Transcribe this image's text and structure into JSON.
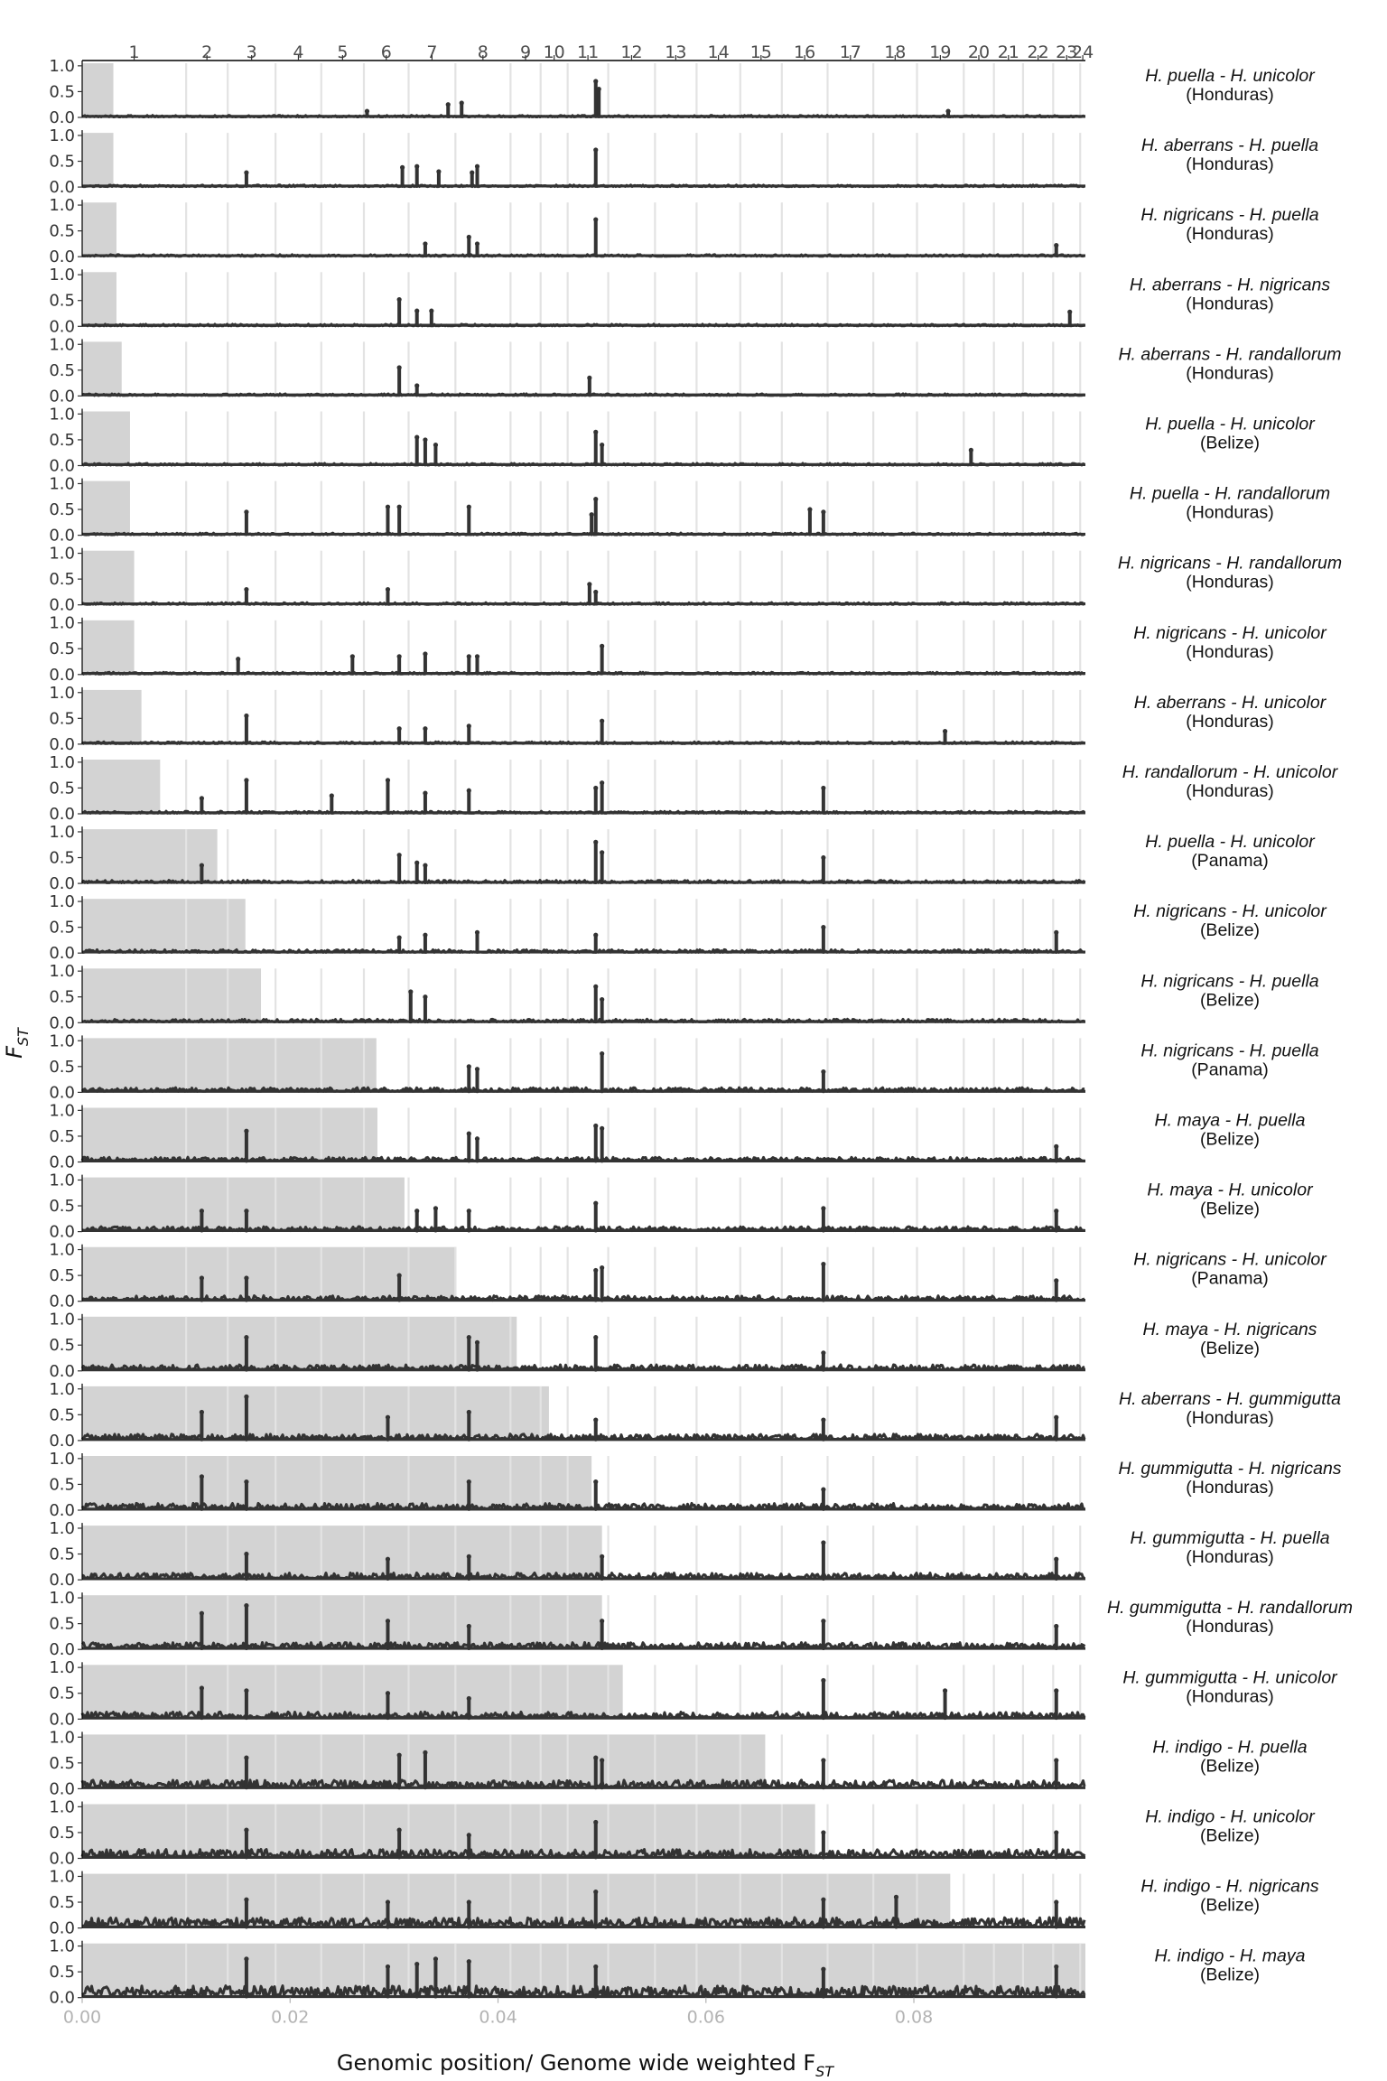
{
  "chart_data": {
    "type": "line",
    "xlabel": {
      "text": "Genomic position/ Genome wide weighted F",
      "sub": "ST"
    },
    "ylabel": {
      "text": "F",
      "sub": "ST"
    },
    "xlim": [
      0,
      0.0965
    ],
    "ylim": [
      0,
      1.05
    ],
    "x_ticks": [
      "0.00",
      "0.02",
      "0.04",
      "0.06",
      "0.08"
    ],
    "x_tick_values": [
      0,
      0.02,
      0.04,
      0.06,
      0.08
    ],
    "y_ticks": [
      "0.0",
      "0.5",
      "1.0"
    ],
    "y_tick_values": [
      0,
      0.5,
      1.0
    ],
    "y_minor_ticks": [
      "0.5",
      "1.0"
    ],
    "chromosomes": {
      "labels": [
        "1",
        "2",
        "3",
        "4",
        "5",
        "6",
        "7",
        "8",
        "9",
        "10",
        "11",
        "12",
        "13",
        "14",
        "15",
        "16",
        "17",
        "18",
        "19",
        "20",
        "21",
        "22",
        "23",
        "24"
      ],
      "boundaries": [
        0,
        0.01,
        0.014,
        0.0186,
        0.023,
        0.0271,
        0.0314,
        0.0359,
        0.0412,
        0.0441,
        0.0467,
        0.0506,
        0.0551,
        0.0591,
        0.0633,
        0.0673,
        0.0717,
        0.0761,
        0.0803,
        0.0848,
        0.0877,
        0.0905,
        0.0934,
        0.096
      ]
    },
    "grid": "vertical lines at chromosome boundaries",
    "series_color": "#333333",
    "shade_color": "#d3d3d3",
    "panels": [
      {
        "label": [
          "H. puella - H. unicolor",
          "(Honduras)"
        ],
        "genome_wide_fst": 0.003,
        "peaks": [
          [
            0.0352,
            0.25
          ],
          [
            0.0365,
            0.28
          ],
          [
            0.0494,
            0.7
          ],
          [
            0.0497,
            0.55
          ],
          [
            0.0274,
            0.12
          ],
          [
            0.0833,
            0.12
          ]
        ]
      },
      {
        "label": [
          "H. aberrans - H. puella",
          "(Honduras)"
        ],
        "genome_wide_fst": 0.003,
        "peaks": [
          [
            0.0158,
            0.28
          ],
          [
            0.0308,
            0.38
          ],
          [
            0.0322,
            0.4
          ],
          [
            0.0343,
            0.3
          ],
          [
            0.0375,
            0.28
          ],
          [
            0.038,
            0.4
          ],
          [
            0.0494,
            0.72
          ]
        ]
      },
      {
        "label": [
          "H. nigricans - H. puella",
          "(Honduras)"
        ],
        "genome_wide_fst": 0.0033,
        "peaks": [
          [
            0.033,
            0.25
          ],
          [
            0.0372,
            0.38
          ],
          [
            0.038,
            0.25
          ],
          [
            0.0494,
            0.72
          ],
          [
            0.0937,
            0.22
          ]
        ]
      },
      {
        "label": [
          "H. aberrans - H. nigricans",
          "(Honduras)"
        ],
        "genome_wide_fst": 0.0033,
        "peaks": [
          [
            0.0305,
            0.52
          ],
          [
            0.0322,
            0.3
          ],
          [
            0.0336,
            0.3
          ],
          [
            0.095,
            0.28
          ]
        ]
      },
      {
        "label": [
          "H. aberrans - H. randallorum",
          "(Honduras)"
        ],
        "genome_wide_fst": 0.0038,
        "peaks": [
          [
            0.0305,
            0.55
          ],
          [
            0.0322,
            0.2
          ],
          [
            0.0488,
            0.35
          ]
        ]
      },
      {
        "label": [
          "H. puella - H. unicolor",
          "(Belize)"
        ],
        "genome_wide_fst": 0.0046,
        "peaks": [
          [
            0.0322,
            0.55
          ],
          [
            0.033,
            0.5
          ],
          [
            0.034,
            0.4
          ],
          [
            0.0494,
            0.65
          ],
          [
            0.05,
            0.4
          ],
          [
            0.0855,
            0.3
          ]
        ]
      },
      {
        "label": [
          "H. puella - H. randallorum",
          "(Honduras)"
        ],
        "genome_wide_fst": 0.0046,
        "peaks": [
          [
            0.0158,
            0.45
          ],
          [
            0.0294,
            0.55
          ],
          [
            0.0305,
            0.55
          ],
          [
            0.0372,
            0.55
          ],
          [
            0.049,
            0.4
          ],
          [
            0.0494,
            0.7
          ],
          [
            0.07,
            0.5
          ],
          [
            0.0713,
            0.45
          ]
        ]
      },
      {
        "label": [
          "H. nigricans - H. randallorum",
          "(Honduras)"
        ],
        "genome_wide_fst": 0.005,
        "peaks": [
          [
            0.0158,
            0.3
          ],
          [
            0.0294,
            0.3
          ],
          [
            0.0488,
            0.4
          ],
          [
            0.0494,
            0.25
          ]
        ]
      },
      {
        "label": [
          "H. nigricans - H. unicolor",
          "(Honduras)"
        ],
        "genome_wide_fst": 0.005,
        "peaks": [
          [
            0.015,
            0.3
          ],
          [
            0.026,
            0.35
          ],
          [
            0.0305,
            0.35
          ],
          [
            0.033,
            0.4
          ],
          [
            0.0372,
            0.35
          ],
          [
            0.038,
            0.35
          ],
          [
            0.05,
            0.55
          ]
        ]
      },
      {
        "label": [
          "H. aberrans - H. unicolor",
          "(Honduras)"
        ],
        "genome_wide_fst": 0.0057,
        "peaks": [
          [
            0.0158,
            0.55
          ],
          [
            0.0305,
            0.3
          ],
          [
            0.033,
            0.3
          ],
          [
            0.0372,
            0.35
          ],
          [
            0.05,
            0.45
          ],
          [
            0.083,
            0.25
          ]
        ]
      },
      {
        "label": [
          "H. randallorum - H. unicolor",
          "(Honduras)"
        ],
        "genome_wide_fst": 0.0075,
        "peaks": [
          [
            0.0115,
            0.3
          ],
          [
            0.0158,
            0.65
          ],
          [
            0.024,
            0.35
          ],
          [
            0.0294,
            0.65
          ],
          [
            0.033,
            0.4
          ],
          [
            0.0372,
            0.45
          ],
          [
            0.0494,
            0.5
          ],
          [
            0.05,
            0.6
          ],
          [
            0.0713,
            0.5
          ]
        ]
      },
      {
        "label": [
          "H. puella - H. unicolor",
          "(Panama)"
        ],
        "genome_wide_fst": 0.013,
        "peaks": [
          [
            0.0115,
            0.35
          ],
          [
            0.0305,
            0.55
          ],
          [
            0.0322,
            0.4
          ],
          [
            0.033,
            0.35
          ],
          [
            0.0494,
            0.8
          ],
          [
            0.05,
            0.6
          ],
          [
            0.0713,
            0.5
          ]
        ]
      },
      {
        "label": [
          "H. nigricans - H. unicolor",
          "(Belize)"
        ],
        "genome_wide_fst": 0.0157,
        "peaks": [
          [
            0.0305,
            0.3
          ],
          [
            0.033,
            0.35
          ],
          [
            0.038,
            0.4
          ],
          [
            0.0494,
            0.35
          ],
          [
            0.0713,
            0.5
          ],
          [
            0.0937,
            0.4
          ]
        ]
      },
      {
        "label": [
          "H. nigricans - H. puella",
          "(Belize)"
        ],
        "genome_wide_fst": 0.0172,
        "peaks": [
          [
            0.0316,
            0.6
          ],
          [
            0.033,
            0.5
          ],
          [
            0.0494,
            0.7
          ],
          [
            0.05,
            0.45
          ]
        ]
      },
      {
        "label": [
          "H. nigricans - H. puella",
          "(Panama)"
        ],
        "genome_wide_fst": 0.0283,
        "peaks": [
          [
            0.0372,
            0.5
          ],
          [
            0.038,
            0.45
          ],
          [
            0.05,
            0.75
          ],
          [
            0.0713,
            0.4
          ]
        ]
      },
      {
        "label": [
          "H. maya - H. puella",
          "(Belize)"
        ],
        "genome_wide_fst": 0.0284,
        "peaks": [
          [
            0.0158,
            0.6
          ],
          [
            0.0372,
            0.55
          ],
          [
            0.038,
            0.45
          ],
          [
            0.0494,
            0.7
          ],
          [
            0.05,
            0.65
          ],
          [
            0.0937,
            0.3
          ]
        ]
      },
      {
        "label": [
          "H. maya - H. unicolor",
          "(Belize)"
        ],
        "genome_wide_fst": 0.031,
        "peaks": [
          [
            0.0115,
            0.4
          ],
          [
            0.0158,
            0.4
          ],
          [
            0.0322,
            0.4
          ],
          [
            0.034,
            0.45
          ],
          [
            0.0372,
            0.4
          ],
          [
            0.0494,
            0.55
          ],
          [
            0.0713,
            0.45
          ],
          [
            0.0937,
            0.4
          ]
        ]
      },
      {
        "label": [
          "H. nigricans - H. unicolor",
          "(Panama)"
        ],
        "genome_wide_fst": 0.036,
        "peaks": [
          [
            0.0115,
            0.45
          ],
          [
            0.0158,
            0.45
          ],
          [
            0.0305,
            0.5
          ],
          [
            0.0494,
            0.6
          ],
          [
            0.05,
            0.65
          ],
          [
            0.0713,
            0.72
          ],
          [
            0.0937,
            0.4
          ]
        ]
      },
      {
        "label": [
          "H. maya - H. nigricans",
          "(Belize)"
        ],
        "genome_wide_fst": 0.0418,
        "peaks": [
          [
            0.0158,
            0.65
          ],
          [
            0.0372,
            0.65
          ],
          [
            0.038,
            0.55
          ],
          [
            0.0494,
            0.65
          ],
          [
            0.0713,
            0.35
          ]
        ]
      },
      {
        "label": [
          "H. aberrans - H. gummigutta",
          "(Honduras)"
        ],
        "genome_wide_fst": 0.0449,
        "peaks": [
          [
            0.0115,
            0.55
          ],
          [
            0.0158,
            0.85
          ],
          [
            0.0294,
            0.45
          ],
          [
            0.0372,
            0.55
          ],
          [
            0.0494,
            0.4
          ],
          [
            0.0713,
            0.4
          ],
          [
            0.0937,
            0.45
          ]
        ]
      },
      {
        "label": [
          "H. gummigutta - H. nigricans",
          "(Honduras)"
        ],
        "genome_wide_fst": 0.049,
        "peaks": [
          [
            0.0115,
            0.65
          ],
          [
            0.0158,
            0.55
          ],
          [
            0.0372,
            0.55
          ],
          [
            0.0494,
            0.55
          ],
          [
            0.0713,
            0.4
          ]
        ]
      },
      {
        "label": [
          "H. gummigutta - H. puella",
          "(Honduras)"
        ],
        "genome_wide_fst": 0.05,
        "peaks": [
          [
            0.0158,
            0.5
          ],
          [
            0.0294,
            0.4
          ],
          [
            0.0372,
            0.45
          ],
          [
            0.05,
            0.45
          ],
          [
            0.0713,
            0.72
          ],
          [
            0.0937,
            0.4
          ]
        ]
      },
      {
        "label": [
          "H. gummigutta - H. randallorum",
          "(Honduras)"
        ],
        "genome_wide_fst": 0.05,
        "peaks": [
          [
            0.0115,
            0.7
          ],
          [
            0.0158,
            0.85
          ],
          [
            0.0294,
            0.55
          ],
          [
            0.0372,
            0.45
          ],
          [
            0.05,
            0.55
          ],
          [
            0.0713,
            0.55
          ],
          [
            0.0937,
            0.45
          ]
        ]
      },
      {
        "label": [
          "H. gummigutta - H. unicolor",
          "(Honduras)"
        ],
        "genome_wide_fst": 0.052,
        "peaks": [
          [
            0.0115,
            0.6
          ],
          [
            0.0158,
            0.55
          ],
          [
            0.0294,
            0.5
          ],
          [
            0.0372,
            0.4
          ],
          [
            0.0713,
            0.75
          ],
          [
            0.083,
            0.55
          ],
          [
            0.0937,
            0.55
          ]
        ]
      },
      {
        "label": [
          "H. indigo - H. puella",
          "(Belize)"
        ],
        "genome_wide_fst": 0.0657,
        "peaks": [
          [
            0.0158,
            0.6
          ],
          [
            0.0305,
            0.65
          ],
          [
            0.033,
            0.7
          ],
          [
            0.0494,
            0.6
          ],
          [
            0.05,
            0.55
          ],
          [
            0.0713,
            0.55
          ],
          [
            0.0937,
            0.55
          ]
        ]
      },
      {
        "label": [
          "H. indigo - H. unicolor",
          "(Belize)"
        ],
        "genome_wide_fst": 0.0705,
        "peaks": [
          [
            0.0158,
            0.55
          ],
          [
            0.0305,
            0.55
          ],
          [
            0.0372,
            0.45
          ],
          [
            0.0494,
            0.7
          ],
          [
            0.0713,
            0.5
          ],
          [
            0.0937,
            0.5
          ]
        ]
      },
      {
        "label": [
          "H. indigo - H. nigricans",
          "(Belize)"
        ],
        "genome_wide_fst": 0.0835,
        "peaks": [
          [
            0.0158,
            0.55
          ],
          [
            0.0294,
            0.5
          ],
          [
            0.0372,
            0.5
          ],
          [
            0.0494,
            0.7
          ],
          [
            0.0713,
            0.55
          ],
          [
            0.0783,
            0.6
          ],
          [
            0.0937,
            0.5
          ]
        ]
      },
      {
        "label": [
          "H. indigo - H. maya",
          "(Belize)"
        ],
        "genome_wide_fst": 0.0965,
        "peaks": [
          [
            0.0158,
            0.75
          ],
          [
            0.0294,
            0.6
          ],
          [
            0.0322,
            0.65
          ],
          [
            0.034,
            0.75
          ],
          [
            0.0372,
            0.7
          ],
          [
            0.0494,
            0.6
          ],
          [
            0.0713,
            0.55
          ],
          [
            0.0937,
            0.6
          ]
        ]
      }
    ]
  }
}
